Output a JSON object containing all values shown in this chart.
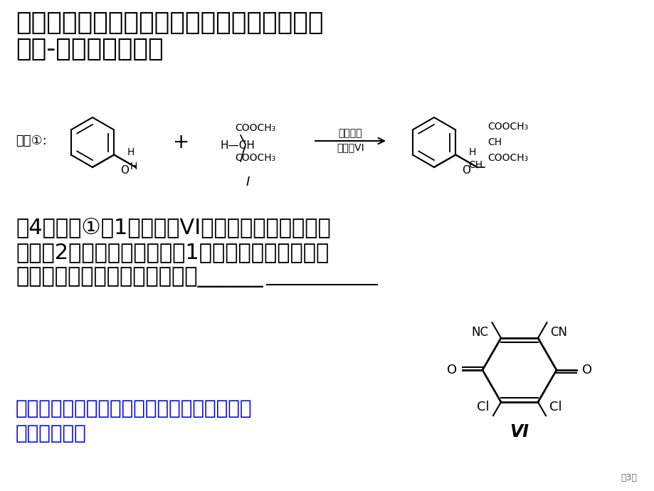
{
  "bg_color": "#FFFFFF",
  "title_line1": "交叉脱氢偶联反应是近年备受关注一类直接生",
  "title_line2": "成碳-碳单键新反应。",
  "title_fontsize": 26,
  "title_color": "#000000",
  "reaction_label": "反应①:",
  "reaction_arrow_text1": "一定条件",
  "reaction_arrow_text2": "脱氢剂VI",
  "compound_I_label": "I",
  "question_line1": "（4）反应①中1个脱氢剂VI（结构简式下列图）分",
  "question_line2": "子取得2个氢原子后，转变成1个芳香族化合物分子，",
  "question_line3": "该芳香族化合物分子结构简式为______",
  "blue_line1": "考查了考生对双键发生加成反应断键和成键知",
  "blue_line2": "识掌握情况。",
  "blue_color": "#0000EE",
  "question_fontsize": 22,
  "blue_fontsize": 20,
  "page_number": "第3页",
  "roman_VI": "VI"
}
